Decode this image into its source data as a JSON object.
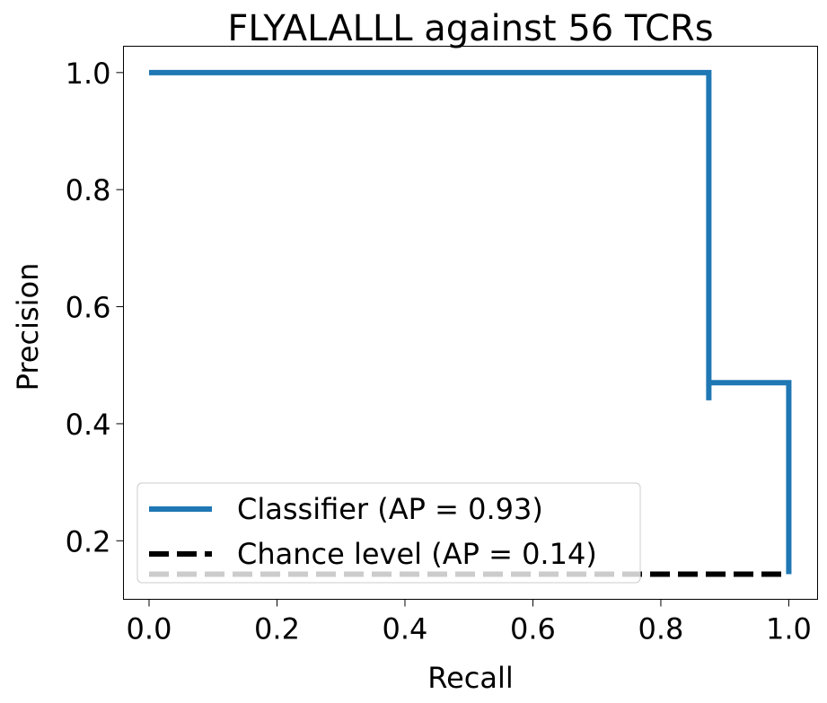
{
  "chart_data": {
    "type": "line",
    "title": "FLYALALLL against 56 TCRs",
    "xlabel": "Recall",
    "ylabel": "Precision",
    "xlim": [
      -0.04,
      1.045
    ],
    "ylim": [
      0.1,
      1.045
    ],
    "x_ticks": [
      0.0,
      0.2,
      0.4,
      0.6,
      0.8,
      1.0
    ],
    "x_tick_labels": [
      "0.0",
      "0.2",
      "0.4",
      "0.6",
      "0.8",
      "1.0"
    ],
    "y_ticks": [
      0.2,
      0.4,
      0.6,
      0.8,
      1.0
    ],
    "y_tick_labels": [
      "0.2",
      "0.4",
      "0.6",
      "0.8",
      "1.0"
    ],
    "grid": false,
    "legend_position": "lower-left",
    "series": [
      {
        "name": "Classifier (AP = 0.93)",
        "color": "#1f77b4",
        "style": "solid",
        "x": [
          0.0,
          0.875,
          0.875,
          0.875,
          1.0,
          1.0
        ],
        "y": [
          1.0,
          1.0,
          0.44,
          0.47,
          0.47,
          0.143
        ]
      },
      {
        "name": "Chance level (AP = 0.14)",
        "color": "#000000",
        "style": "dashed",
        "x": [
          0.0,
          1.0
        ],
        "y": [
          0.143,
          0.143
        ]
      }
    ]
  }
}
